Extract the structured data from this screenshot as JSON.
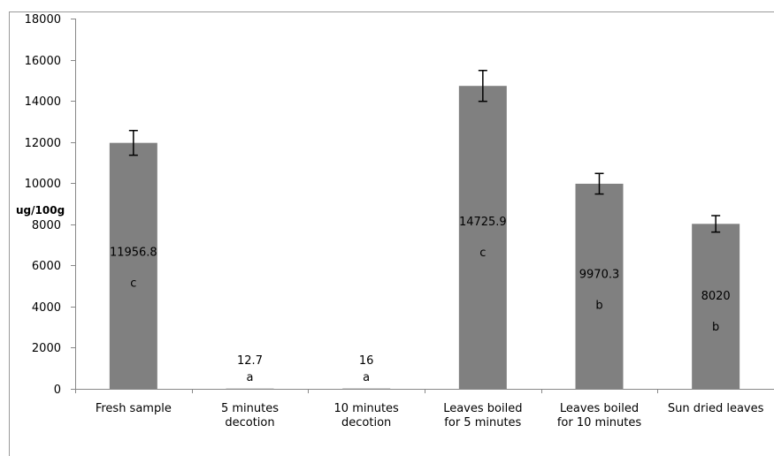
{
  "chart_data": {
    "type": "bar",
    "title": "",
    "xlabel": "",
    "ylabel": "ug/100g",
    "ylim": [
      0,
      18000
    ],
    "yticks": [
      0,
      2000,
      4000,
      6000,
      8000,
      10000,
      12000,
      14000,
      16000,
      18000
    ],
    "grid": false,
    "bar_color": "#808080",
    "categories": [
      [
        "Fresh sample"
      ],
      [
        "5 minutes",
        "decotion"
      ],
      [
        "10 minutes",
        "decotion"
      ],
      [
        "Leaves boiled",
        "for 5 minutes"
      ],
      [
        "Leaves boiled",
        "for 10 minutes"
      ],
      [
        "Sun dried leaves"
      ]
    ],
    "values": [
      11956.8,
      12.7,
      16,
      14725.9,
      9970.3,
      8020
    ],
    "value_labels": [
      "11956.8",
      "12.7",
      "16",
      "14725.9",
      "9970.3",
      "8020"
    ],
    "errors": [
      600,
      0,
      0,
      750,
      500,
      400
    ],
    "significance_letters": [
      "c",
      "a",
      "a",
      "c",
      "b",
      "b"
    ]
  }
}
